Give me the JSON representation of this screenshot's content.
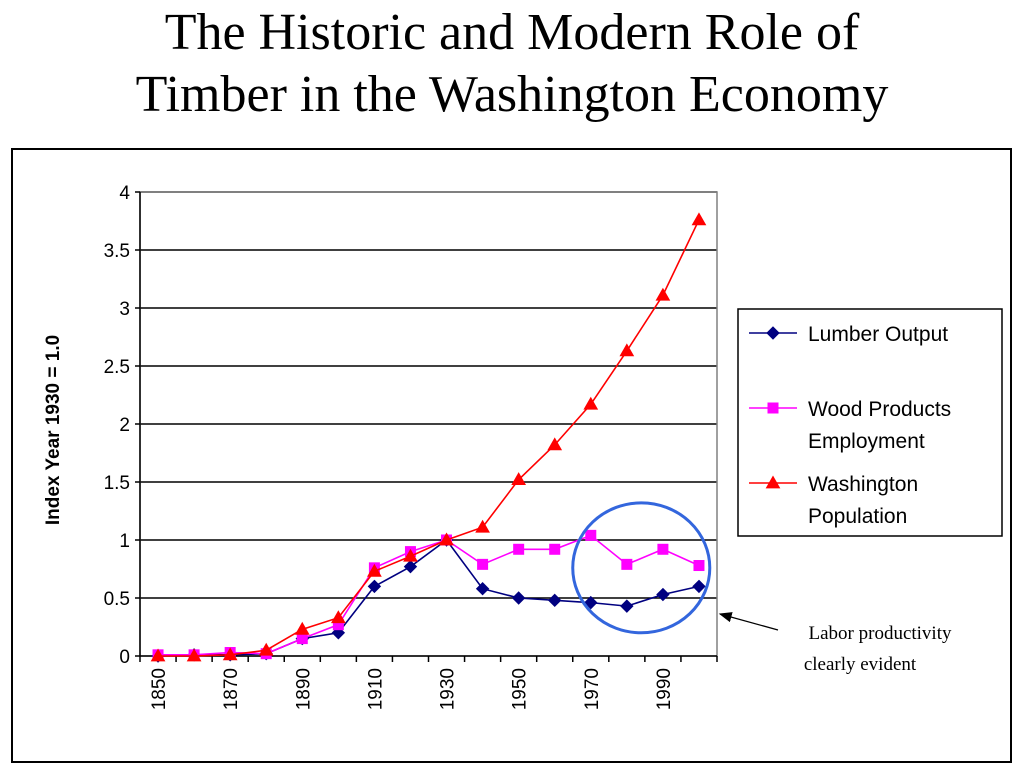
{
  "slide": {
    "title_line1": "The Historic and Modern Role of",
    "title_line2": "Timber in the Washington Economy"
  },
  "chart_data": {
    "type": "line",
    "x": [
      1850,
      1860,
      1870,
      1880,
      1890,
      1900,
      1910,
      1920,
      1930,
      1940,
      1950,
      1960,
      1970,
      1980,
      1990,
      2000
    ],
    "x_tick_labels": [
      "1850",
      "1870",
      "1890",
      "1910",
      "1930",
      "1950",
      "1970",
      "1990"
    ],
    "y_tick_labels": [
      "0",
      "0.5",
      "1",
      "1.5",
      "2",
      "2.5",
      "3",
      "3.5",
      "4"
    ],
    "ylabel": "Index Year 1930 = 1.0",
    "xlabel": "",
    "ylim": [
      0,
      4
    ],
    "grid": "horizontal",
    "legend_position": "right",
    "series": [
      {
        "name": "Lumber Output",
        "marker": "diamond",
        "color": "#000080",
        "values": [
          0.0,
          0.01,
          0.01,
          0.02,
          0.15,
          0.2,
          0.6,
          0.77,
          1.0,
          0.58,
          0.5,
          0.48,
          0.46,
          0.43,
          0.53,
          0.6
        ]
      },
      {
        "name": "Wood Products Employment",
        "marker": "square",
        "color": "#FF00FF",
        "values": [
          0.01,
          0.01,
          0.03,
          0.02,
          0.15,
          0.27,
          0.76,
          0.9,
          1.0,
          0.79,
          0.92,
          0.92,
          1.04,
          0.79,
          0.92,
          0.78
        ]
      },
      {
        "name": "Washington Population",
        "marker": "triangle",
        "color": "#FF0000",
        "values": [
          0.0,
          0.0,
          0.01,
          0.05,
          0.23,
          0.33,
          0.73,
          0.86,
          1.0,
          1.11,
          1.52,
          1.82,
          2.17,
          2.63,
          3.11,
          3.76
        ]
      }
    ],
    "annotations": [
      {
        "text_line1": "Labor productivity",
        "text_line2": "clearly evident",
        "highlight": "ellipse",
        "highlight_color": "#3366DD",
        "highlight_x_range": [
          1965,
          2003
        ],
        "highlight_y_range": [
          0.2,
          1.32
        ]
      }
    ]
  }
}
